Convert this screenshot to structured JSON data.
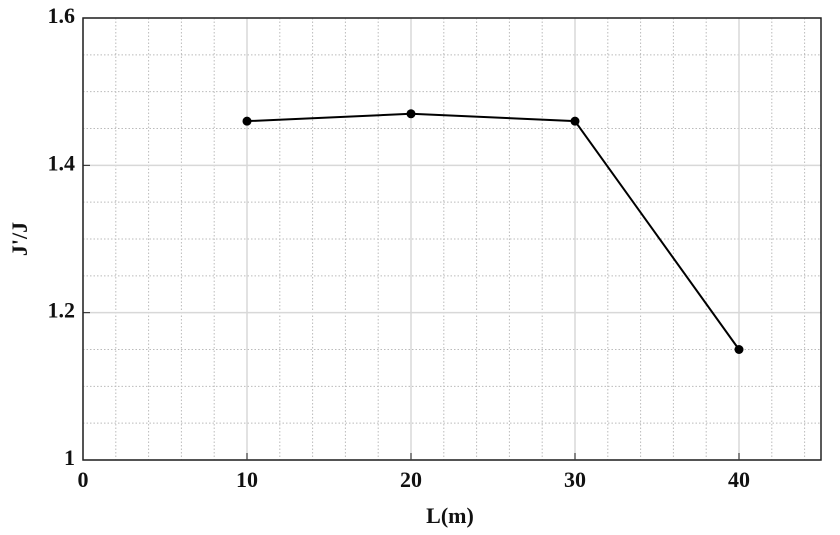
{
  "chart_data": {
    "type": "line",
    "xlabel": "L(m)",
    "ylabel": "J'/J",
    "x": [
      10,
      20,
      30,
      40
    ],
    "series": [
      {
        "name": "J'/J",
        "color": "#000000",
        "values": [
          1.46,
          1.47,
          1.46,
          1.15
        ]
      }
    ],
    "xlim": [
      0,
      45
    ],
    "xticks": [
      0,
      10,
      20,
      30,
      40
    ],
    "ylim": [
      1,
      1.6
    ],
    "yticks": [
      1,
      1.2,
      1.4,
      1.6
    ],
    "grid": true,
    "minor_grid": true
  }
}
